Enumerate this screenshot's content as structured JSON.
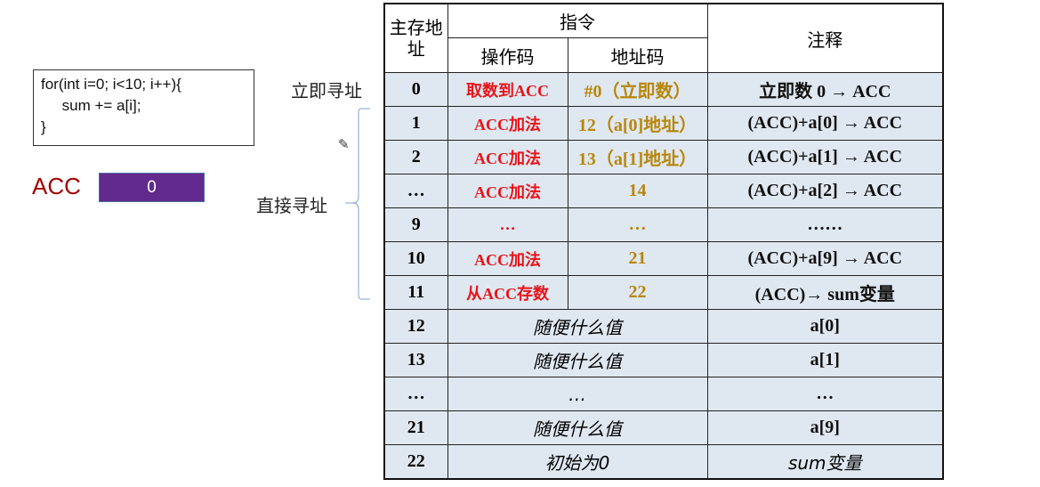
{
  "code": {
    "lines": [
      "for(int i=0; i<10; i++){",
      "     sum += a[i];",
      "}"
    ]
  },
  "acc": {
    "label": "ACC",
    "value": "0",
    "color": "#622a8e"
  },
  "labels": {
    "immediate": "立即寻址",
    "direct": "直接寻址"
  },
  "table": {
    "headers": {
      "address": "主存地址",
      "instruction": "指令",
      "opcode": "操作码",
      "addrcode": "地址码",
      "comment": "注释"
    },
    "instr_rows": [
      {
        "addr": "0",
        "op": "取数到ACC",
        "ad": "#0（立即数）",
        "note": "立即数 0 → ACC"
      },
      {
        "addr": "1",
        "op": "ACC加法",
        "ad": "12（a[0]地址）",
        "note": "(ACC)+a[0] → ACC"
      },
      {
        "addr": "2",
        "op": "ACC加法",
        "ad": "13（a[1]地址）",
        "note": "(ACC)+a[1] → ACC"
      },
      {
        "addr": "…",
        "op": "ACC加法",
        "ad": "14",
        "note": "(ACC)+a[2] → ACC"
      },
      {
        "addr": "9",
        "op": "…",
        "ad": "…",
        "note": "……"
      },
      {
        "addr": "10",
        "op": "ACC加法",
        "ad": "21",
        "note": "(ACC)+a[9] → ACC"
      },
      {
        "addr": "11",
        "op": "从ACC存数",
        "ad": "22",
        "note": "(ACC)→ sum变量"
      }
    ],
    "data_rows": [
      {
        "addr": "12",
        "value": "随便什么值",
        "note": "a[0]"
      },
      {
        "addr": "13",
        "value": "随便什么值",
        "note": "a[1]"
      },
      {
        "addr": "…",
        "value": "…",
        "note": "…"
      },
      {
        "addr": "21",
        "value": "随便什么值",
        "note": "a[9]"
      },
      {
        "addr": "22",
        "value": "初始为0",
        "note": "sum变量"
      }
    ]
  }
}
